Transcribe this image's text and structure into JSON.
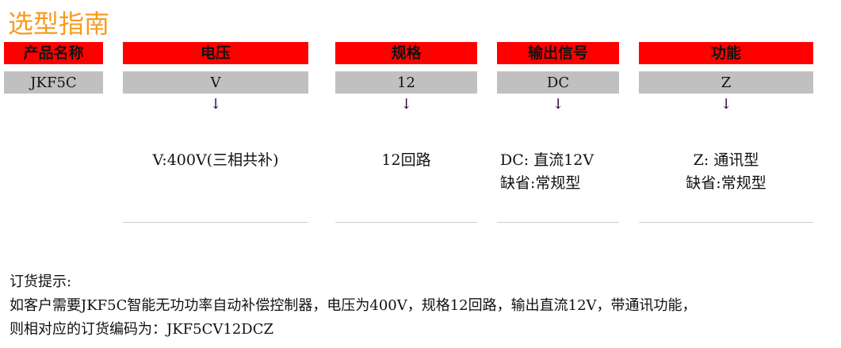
{
  "title": "选型指南",
  "columns": [
    {
      "header": "产品名称",
      "code": "JKF5C"
    },
    {
      "header": "电压",
      "code": "V",
      "arrow": "↓",
      "desc": [
        "V:400V(三相共补)"
      ]
    },
    {
      "header": "规格",
      "code": "12",
      "arrow": "↓",
      "desc": [
        "12回路"
      ]
    },
    {
      "header": "输出信号",
      "code": "DC",
      "arrow": "↓",
      "desc": [
        "DC: 直流12V",
        "缺省:常规型"
      ]
    },
    {
      "header": "功能",
      "code": "Z",
      "arrow": "↓",
      "desc": [
        "Z: 通讯型",
        "缺省:常规型"
      ]
    }
  ],
  "note": {
    "label": "订货提示:",
    "line1": "如客户需要JKF5C智能无功功率自动补偿控制器，电压为400V，规格12回路，输出直流12V，带通讯功能，",
    "line2": "则相对应的订货编码为：JKF5CV12DCZ"
  },
  "colors": {
    "title": "#f99a1c",
    "header": "#ff0000",
    "code": "#c0c0c0"
  }
}
